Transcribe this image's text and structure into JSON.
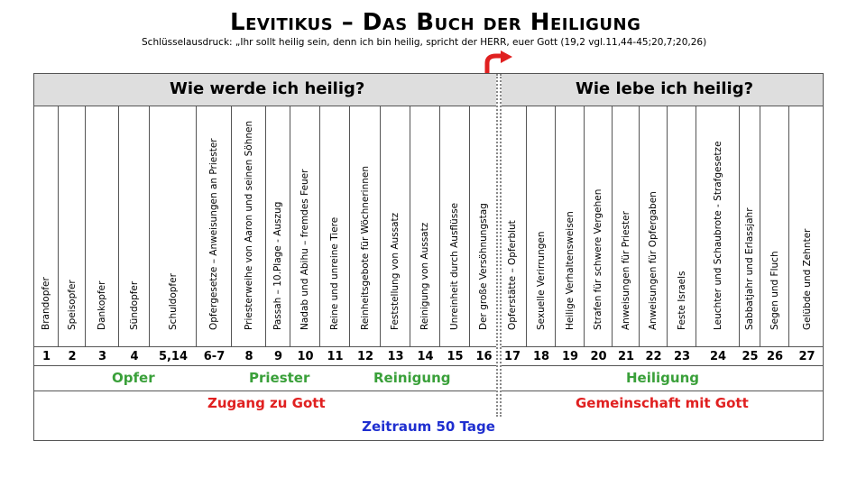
{
  "title": "Levitikus – Das Buch der Heiligung",
  "keyphrase": "Schlüsselausdruck: „Ihr sollt heilig sein, denn ich bin heilig, spricht der HERR, euer Gott (19,2 vgl.11,44-45;20,7;20,26)",
  "header_left": "Wie werde ich heilig?",
  "header_right": "Wie lebe ich heilig?",
  "chapters": [
    {
      "label": "Brandopfer",
      "num": "1"
    },
    {
      "label": "Speisopfer",
      "num": "2"
    },
    {
      "label": "Dankopfer",
      "num": "3"
    },
    {
      "label": "Sündopfer",
      "num": "4"
    },
    {
      "label": "Schuldopfer",
      "num": "5,14"
    },
    {
      "label": "Opfergesetze – Anweisungen an Priester",
      "num": "6-7"
    },
    {
      "label": "Priesterweihe von Aaron und seinen Söhnen",
      "num": "8"
    },
    {
      "label": "Passah – 10.Plage - Auszug",
      "num": "9"
    },
    {
      "label": "Nadab und Abihu – fremdes Feuer",
      "num": "10"
    },
    {
      "label": "Reine und unreine Tiere",
      "num": "11"
    },
    {
      "label": "Reinheitsgebote für Wöchnerinnen",
      "num": "12"
    },
    {
      "label": "Feststellung von Aussatz",
      "num": "13"
    },
    {
      "label": "Reinigung von Aussatz",
      "num": "14"
    },
    {
      "label": "Unreinheit durch Ausflüsse",
      "num": "15"
    },
    {
      "label": "Der große Versöhnungstag",
      "num": "16"
    },
    {
      "label": "Opferstätte – Opferblut",
      "num": "17"
    },
    {
      "label": "Sexuelle Verirrungen",
      "num": "18"
    },
    {
      "label": "Heilige Verhaltensweisen",
      "num": "19"
    },
    {
      "label": "Strafen für schwere Vergehen",
      "num": "20"
    },
    {
      "label": "Anweisungen für Priester",
      "num": "21"
    },
    {
      "label": "Anweisungen für Opfergaben",
      "num": "22"
    },
    {
      "label": "Feste Israels",
      "num": "23"
    },
    {
      "label": "Leuchter und Schaubrote - Strafgesetze",
      "num": "24"
    },
    {
      "label": "Sabbatjahr und Erlassjahr",
      "num": "25"
    },
    {
      "label": "Segen und Fluch",
      "num": "26"
    },
    {
      "label": "Gelübde und Zehnter",
      "num": "27"
    }
  ],
  "groups": {
    "opfer": "Opfer",
    "priester": "Priester",
    "reinigung": "Reinigung",
    "heiligung": "Heiligung"
  },
  "themes": {
    "left": "Zugang zu Gott",
    "right": "Gemeinschaft mit Gott"
  },
  "period": "Zeitraum 50 Tage",
  "colors": {
    "groups": "#3aa03a",
    "themes": "#e02020",
    "period": "#1f2fd0",
    "arrow": "#e02020",
    "header_bg": "#dedede"
  }
}
